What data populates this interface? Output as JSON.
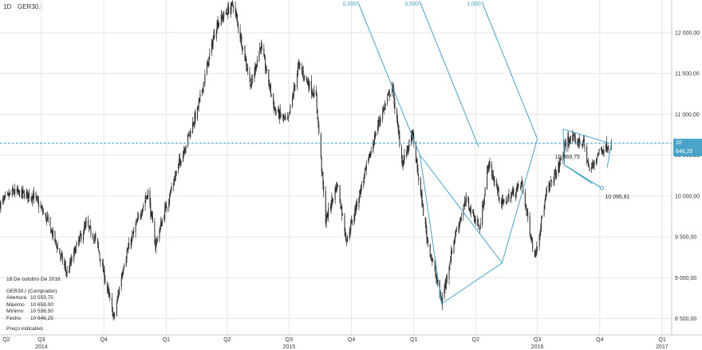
{
  "header": {
    "timeframe": "1D",
    "symbol": "GER30.I"
  },
  "info_panel": {
    "date": "18 De outubro De 2016",
    "instrument": "GER30.I (Comprador)",
    "rows": [
      {
        "label": "Abertura",
        "value": "10 559,75"
      },
      {
        "label": "Máximo",
        "value": "10 658,00"
      },
      {
        "label": "Mínimo",
        "value": "10 536,50"
      },
      {
        "label": "Fecho",
        "value": "10 646,25"
      }
    ],
    "footer": "Preço indicativo"
  },
  "colors": {
    "candle": "#2a2a2a",
    "accent": "#4aa3c8",
    "grid": "#e6e6e6",
    "axis": "#c8c8c8"
  },
  "chart_data": {
    "type": "candlestick",
    "ylim": [
      8300,
      12400
    ],
    "y_ticks": [
      {
        "value": 8500,
        "label": "8 500,00"
      },
      {
        "value": 9000,
        "label": "9 000,00"
      },
      {
        "value": 9500,
        "label": "9 500,00"
      },
      {
        "value": 10000,
        "label": "10 000,00"
      },
      {
        "value": 10500,
        "label": "10 500,00"
      },
      {
        "value": 11000,
        "label": "11 000,00"
      },
      {
        "value": 11500,
        "label": "11 500,00"
      },
      {
        "value": 12000,
        "label": "12 000,00"
      }
    ],
    "x_range": [
      "2014-05-01",
      "2017-01-15"
    ],
    "x_ticks": [
      {
        "date": "2014-04-01",
        "label": "Q2"
      },
      {
        "date": "2014-07-01",
        "label": "Q3"
      },
      {
        "date": "2014-10-01",
        "label": "Q4"
      },
      {
        "date": "2015-01-01",
        "label": "Q1"
      },
      {
        "date": "2015-04-01",
        "label": "Q2"
      },
      {
        "date": "2015-07-01",
        "label": "Q3"
      },
      {
        "date": "2015-10-01",
        "label": "Q4"
      },
      {
        "date": "2016-01-01",
        "label": "Q1"
      },
      {
        "date": "2016-04-01",
        "label": "Q2"
      },
      {
        "date": "2016-07-01",
        "label": "Q3"
      },
      {
        "date": "2016-10-01",
        "label": "Q4"
      },
      {
        "date": "2017-01-01",
        "label": "Q1"
      }
    ],
    "year_labels": [
      {
        "date": "2014-07-01",
        "label": "2014"
      },
      {
        "date": "2015-07-01",
        "label": "2015"
      },
      {
        "date": "2016-07-01",
        "label": "2016"
      },
      {
        "date": "2017-01-01",
        "label": "2017"
      }
    ],
    "price_path": [
      [
        "2014-05-01",
        9900
      ],
      [
        "2014-05-20",
        10050
      ],
      [
        "2014-06-20",
        10000
      ],
      [
        "2014-07-10",
        9700
      ],
      [
        "2014-08-08",
        9050
      ],
      [
        "2014-08-20",
        9350
      ],
      [
        "2014-09-05",
        9650
      ],
      [
        "2014-09-20",
        9450
      ],
      [
        "2014-10-16",
        8500
      ],
      [
        "2014-10-31",
        9200
      ],
      [
        "2014-11-20",
        9700
      ],
      [
        "2014-12-05",
        10050
      ],
      [
        "2014-12-16",
        9400
      ],
      [
        "2014-12-31",
        9850
      ],
      [
        "2015-01-20",
        10400
      ],
      [
        "2015-02-16",
        11050
      ],
      [
        "2015-03-16",
        12100
      ],
      [
        "2015-04-10",
        12350
      ],
      [
        "2015-05-06",
        11350
      ],
      [
        "2015-05-20",
        11850
      ],
      [
        "2015-06-10",
        11050
      ],
      [
        "2015-06-29",
        10900
      ],
      [
        "2015-07-15",
        11600
      ],
      [
        "2015-08-10",
        11200
      ],
      [
        "2015-08-24",
        9700
      ],
      [
        "2015-09-10",
        10150
      ],
      [
        "2015-09-24",
        9450
      ],
      [
        "2015-10-20",
        10250
      ],
      [
        "2015-11-10",
        10900
      ],
      [
        "2015-11-30",
        11350
      ],
      [
        "2015-12-15",
        10400
      ],
      [
        "2015-12-30",
        10750
      ],
      [
        "2016-01-20",
        9500
      ],
      [
        "2016-02-11",
        8700
      ],
      [
        "2016-03-01",
        9500
      ],
      [
        "2016-03-18",
        9950
      ],
      [
        "2016-04-07",
        9600
      ],
      [
        "2016-04-20",
        10400
      ],
      [
        "2016-05-10",
        9900
      ],
      [
        "2016-06-08",
        10150
      ],
      [
        "2016-06-27",
        9250
      ],
      [
        "2016-07-15",
        10050
      ],
      [
        "2016-08-01",
        10350
      ],
      [
        "2016-08-15",
        10700
      ],
      [
        "2016-09-07",
        10650
      ],
      [
        "2016-09-16",
        10300
      ],
      [
        "2016-09-30",
        10550
      ],
      [
        "2016-10-18",
        10646
      ]
    ],
    "last_price": {
      "value": 10646.25,
      "label": "10 646,25"
    },
    "annotations": [
      {
        "label": "10 369,75",
        "date": "2016-09-04",
        "value": 10450
      },
      {
        "label": "10 095,81",
        "date": "2016-10-04",
        "value": 10000
      }
    ],
    "pitchfork": {
      "p0": [
        "2016-01-10",
        10500
      ],
      "p1": [
        "2016-02-11",
        8680
      ],
      "p2": [
        "2016-05-10",
        9180
      ],
      "p3": [
        "2016-07-01",
        10700
      ],
      "levels": [
        {
          "pos": 0,
          "label": "0,000"
        },
        {
          "pos": 0.5,
          "label": "0,500"
        },
        {
          "pos": 1,
          "label": "1,000"
        }
      ]
    }
  }
}
